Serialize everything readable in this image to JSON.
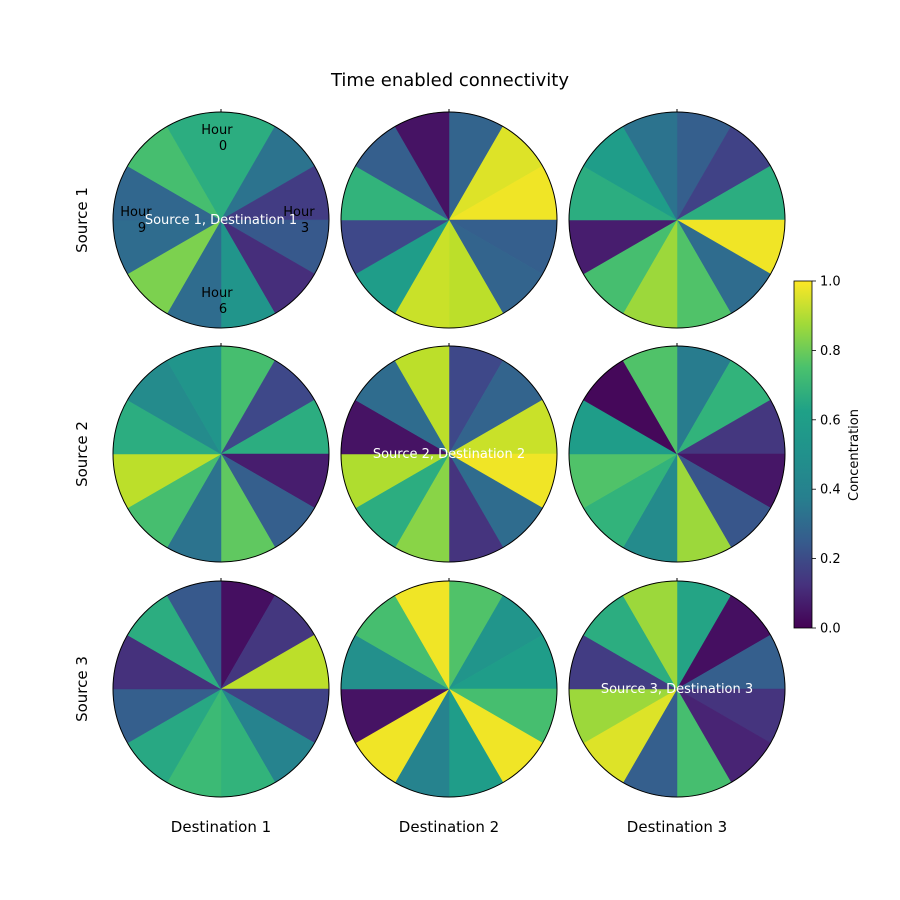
{
  "chart_data": {
    "type": "heatmap",
    "title": "Time enabled connectivity",
    "rows": [
      "Source 1",
      "Source 2",
      "Source 3"
    ],
    "columns": [
      "Destination 1",
      "Destination 2",
      "Destination 3"
    ],
    "hour_labels": [
      {
        "line1": "Hour",
        "line2": "0"
      },
      {
        "line1": "Hour",
        "line2": "3"
      },
      {
        "line1": "Hour",
        "line2": "6"
      },
      {
        "line1": "Hour",
        "line2": "9"
      }
    ],
    "center_labels": [
      {
        "row": 0,
        "col": 0,
        "text": "Source 1, Destination 1"
      },
      {
        "row": 1,
        "col": 1,
        "text": "Source 2, Destination 2"
      },
      {
        "row": 2,
        "col": 2,
        "text": "Source 3, Destination 3"
      }
    ],
    "colorbar": {
      "label": "Concentration",
      "range": [
        0.0,
        1.0
      ],
      "ticks": [
        0.0,
        0.2,
        0.4,
        0.6,
        0.8,
        1.0
      ],
      "tick_labels": [
        "0.0",
        "0.2",
        "0.4",
        "0.6",
        "0.8",
        "1.0"
      ],
      "colormap": "viridis"
    },
    "hours_per_pie": 12,
    "hour_order": "clockwise from top",
    "values": [
      [
        [
          0.62,
          0.38,
          0.18,
          0.28,
          0.13,
          0.52,
          0.35,
          0.8,
          0.35,
          0.33,
          0.7,
          0.62
        ],
        [
          0.32,
          0.95,
          0.98,
          0.3,
          0.32,
          0.9,
          0.92,
          0.55,
          0.22,
          0.65,
          0.3,
          0.05
        ],
        [
          0.3,
          0.2,
          0.62,
          0.98,
          0.35,
          0.72,
          0.85,
          0.7,
          0.08,
          0.62,
          0.55,
          0.38
        ]
      ],
      [
        [
          0.7,
          0.22,
          0.62,
          0.08,
          0.3,
          0.75,
          0.38,
          0.7,
          0.9,
          0.62,
          0.48,
          0.52
        ],
        [
          0.22,
          0.32,
          0.92,
          0.98,
          0.35,
          0.15,
          0.82,
          0.62,
          0.88,
          0.05,
          0.35,
          0.9
        ],
        [
          0.42,
          0.65,
          0.16,
          0.06,
          0.27,
          0.85,
          0.48,
          0.65,
          0.72,
          0.55,
          0.02,
          0.72
        ]
      ],
      [
        [
          0.04,
          0.16,
          0.9,
          0.2,
          0.45,
          0.65,
          0.68,
          0.6,
          0.3,
          0.14,
          0.62,
          0.28
        ],
        [
          0.72,
          0.52,
          0.55,
          0.7,
          0.98,
          0.55,
          0.45,
          0.98,
          0.05,
          0.5,
          0.7,
          0.98
        ],
        [
          0.58,
          0.04,
          0.3,
          0.15,
          0.1,
          0.7,
          0.3,
          0.95,
          0.85,
          0.18,
          0.62,
          0.85
        ]
      ]
    ]
  }
}
